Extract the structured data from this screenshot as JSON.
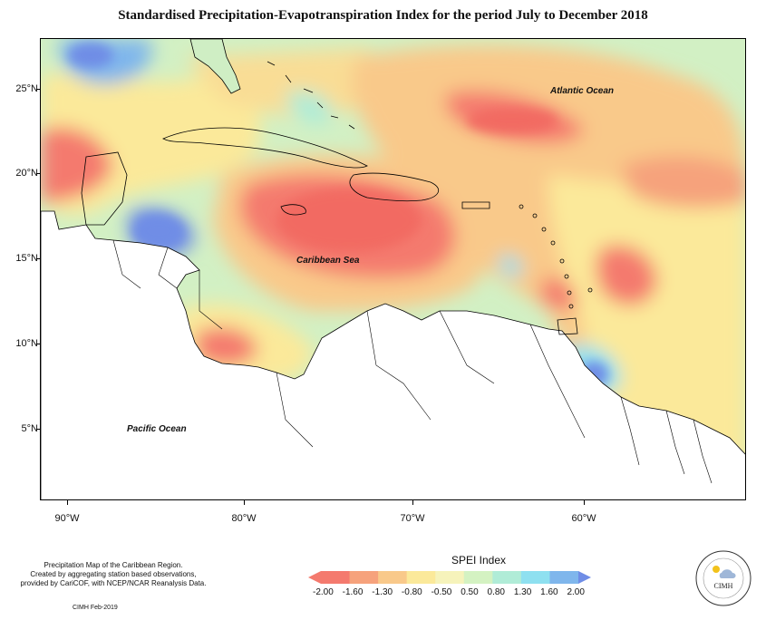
{
  "title": "Standardised Precipitation-Evapotranspiration Index for the period July to December 2018",
  "map": {
    "latitude_labels": [
      "25°N",
      "20°N",
      "15°N",
      "10°N",
      "5°N"
    ],
    "longitude_labels": [
      "90°W",
      "80°W",
      "70°W",
      "60°W"
    ],
    "ocean_labels": {
      "atlantic": "Atlantic Ocean",
      "caribbean": "Caribbean Sea",
      "pacific": "Pacific Ocean"
    }
  },
  "legend": {
    "title": "SPEI Index",
    "ticks": [
      "-2.00",
      "-1.60",
      "-1.30",
      "-0.80",
      "-0.50",
      "0.50",
      "0.80",
      "1.30",
      "1.60",
      "2.00"
    ],
    "colors": [
      "#f47a6e",
      "#f6a27c",
      "#f9c98a",
      "#fbe99a",
      "#f6f3bb",
      "#d4f2c2",
      "#b0ecd7",
      "#8ee0f0",
      "#7fb6ec",
      "#6f8de6"
    ]
  },
  "footnote": {
    "line1": "Precipitation Map of the Caribbean Region.",
    "line2": "Created by aggregating station based observations,",
    "line3": "provided by CariCOF, with NCEP/NCAR Reanalysis Data."
  },
  "credit": "CIMH Feb-2019",
  "logo": {
    "text": "CIMH"
  }
}
